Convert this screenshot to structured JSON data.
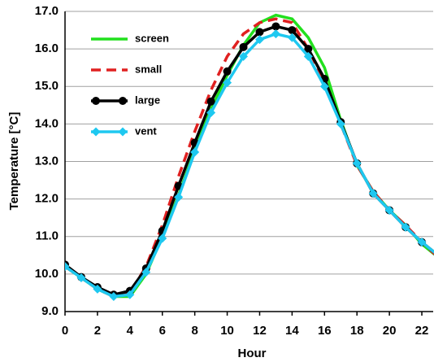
{
  "chart_data": {
    "type": "line",
    "x_label": "Hour",
    "y_label": "Temperature [°C]",
    "x": [
      0,
      1,
      2,
      3,
      4,
      5,
      6,
      7,
      8,
      9,
      10,
      11,
      12,
      13,
      14,
      15,
      16,
      17,
      18,
      19,
      20,
      21,
      22,
      23
    ],
    "series": [
      {
        "name": "screen",
        "color": "#22e01e",
        "dash": false,
        "marker": "none",
        "values": [
          10.2,
          9.9,
          9.6,
          9.4,
          9.4,
          10.0,
          11.0,
          12.1,
          13.3,
          14.4,
          15.3,
          16.1,
          16.7,
          16.9,
          16.8,
          16.3,
          15.5,
          14.1,
          12.9,
          12.2,
          11.7,
          11.3,
          10.8,
          10.45
        ]
      },
      {
        "name": "small",
        "color": "#e02020",
        "dash": true,
        "marker": "none",
        "values": [
          10.2,
          9.9,
          9.6,
          9.4,
          9.5,
          10.2,
          11.3,
          12.6,
          13.8,
          14.9,
          15.8,
          16.4,
          16.7,
          16.8,
          16.7,
          16.0,
          15.1,
          14.0,
          12.9,
          12.2,
          11.7,
          11.3,
          10.85,
          10.45
        ]
      },
      {
        "name": "large",
        "color": "#000000",
        "dash": false,
        "marker": "circle",
        "values": [
          10.25,
          9.92,
          9.65,
          9.45,
          9.55,
          10.15,
          11.15,
          12.35,
          13.5,
          14.6,
          15.4,
          16.05,
          16.45,
          16.6,
          16.5,
          16.0,
          15.2,
          14.05,
          12.95,
          12.15,
          11.7,
          11.25,
          10.85,
          10.5
        ]
      },
      {
        "name": "vent",
        "color": "#1ec8f0",
        "dash": false,
        "marker": "diamond",
        "values": [
          10.2,
          9.9,
          9.6,
          9.4,
          9.45,
          10.05,
          10.95,
          12.05,
          13.25,
          14.3,
          15.1,
          15.8,
          16.25,
          16.4,
          16.3,
          15.8,
          15.0,
          14.0,
          12.95,
          12.15,
          11.7,
          11.25,
          10.85,
          10.5
        ]
      }
    ],
    "xlim": [
      0,
      22.7
    ],
    "xticks": [
      0,
      2,
      4,
      6,
      8,
      10,
      12,
      14,
      16,
      18,
      20,
      22
    ],
    "ylim": [
      9,
      17
    ],
    "yticks": [
      {
        "value": 9,
        "label": "9.0"
      },
      {
        "value": 10,
        "label": "10.0"
      },
      {
        "value": 11,
        "label": "11.0"
      },
      {
        "value": 12,
        "label": "12.0"
      },
      {
        "value": 13,
        "label": "13.0"
      },
      {
        "value": 14,
        "label": "14.0"
      },
      {
        "value": 15,
        "label": "15.0"
      },
      {
        "value": 16,
        "label": "16.0"
      },
      {
        "value": 17,
        "label": "17.0"
      }
    ],
    "grid": true,
    "legend": "upper left"
  }
}
